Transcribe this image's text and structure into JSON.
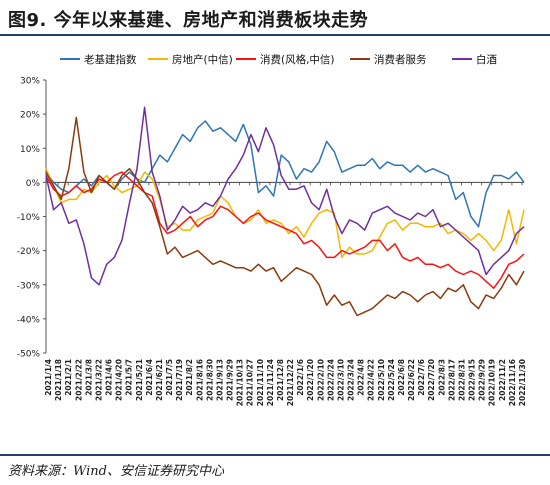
{
  "title": "图9. 今年以来基建、房地产和消费板块走势",
  "source": "资料来源：Wind、安信证券研究中心",
  "chart_data": {
    "type": "line",
    "ylim": [
      -50,
      30
    ],
    "yticks": [
      -50,
      -40,
      -30,
      -20,
      -10,
      0,
      10,
      20,
      30
    ],
    "ytick_labels": [
      "-50%",
      "-40%",
      "-30%",
      "-20%",
      "-10%",
      "0%",
      "10%",
      "20%",
      "30%"
    ],
    "x_tick_labels": [
      "2021/1/4",
      "2021/1/18",
      "2021/2/1",
      "2021/2/22",
      "2021/3/8",
      "2021/3/22",
      "2021/4/6",
      "2021/4/20",
      "2021/5/7",
      "2021/5/21",
      "2021/6/4",
      "2021/6/21",
      "2021/7/5",
      "2021/7/19",
      "2021/8/2",
      "2021/8/16",
      "2021/8/30",
      "2021/9/13",
      "2021/9/29",
      "2021/10/13",
      "2021/10/27",
      "2021/11/10",
      "2021/11/24",
      "2021/12/8",
      "2021/12/22",
      "2022/1/6",
      "2022/1/20",
      "2022/2/10",
      "2022/2/24",
      "2022/3/10",
      "2022/3/24",
      "2022/4/8",
      "2022/4/22",
      "2022/5/10",
      "2022/5/24",
      "2022/6/8",
      "2022/6/22",
      "2022/7/6",
      "2022/7/20",
      "2022/8/3",
      "2022/8/17",
      "2022/8/31",
      "2022/9/15",
      "2022/9/29",
      "2022/10/19",
      "2022/11/2",
      "2022/11/16",
      "2022/11/30"
    ],
    "legend_position": "top",
    "series": [
      {
        "name": "老基建指数",
        "color": "#2e75b6",
        "values": [
          3,
          0,
          -2,
          -3,
          -1,
          1,
          -1,
          2,
          0,
          -2,
          1,
          3,
          1,
          0,
          4,
          8,
          6,
          10,
          14,
          12,
          16,
          18,
          15,
          16,
          14,
          12,
          17,
          11,
          -3,
          -1,
          -4,
          8,
          6,
          1,
          4,
          3,
          6,
          12,
          9,
          3,
          4,
          5,
          5,
          7,
          4,
          6,
          5,
          5,
          3,
          5,
          3,
          4,
          3,
          2,
          -5,
          -3,
          -10,
          -13,
          -3,
          2,
          2,
          1,
          3,
          0
        ]
      },
      {
        "name": "房地产(中信)",
        "color": "#f5b800",
        "values": [
          4,
          -1,
          -6,
          -5,
          -5,
          -2,
          -3,
          0,
          2,
          -1,
          -3,
          -2,
          -1,
          3,
          1,
          -5,
          -13,
          -12,
          -14,
          -14,
          -11,
          -10,
          -9,
          -4,
          -6,
          -10,
          -12,
          -11,
          -8,
          -12,
          -11,
          -12,
          -15,
          -13,
          -16,
          -12,
          -9,
          -8,
          -9,
          -22,
          -19,
          -21,
          -21,
          -20,
          -16,
          -12,
          -11,
          -14,
          -12,
          -12,
          -13,
          -13,
          -12,
          -15,
          -14,
          -15,
          -17,
          -15,
          -17,
          -20,
          -17,
          -8,
          -18,
          -8
        ]
      },
      {
        "name": "消费(风格,中信)",
        "color": "#ff1111",
        "values": [
          2,
          -2,
          -4,
          -3,
          -1,
          -3,
          -2,
          1,
          0,
          2,
          3,
          1,
          -1,
          -3,
          -4,
          -12,
          -15,
          -14,
          -12,
          -10,
          -13,
          -11,
          -10,
          -7,
          -8,
          -10,
          -12,
          -10,
          -9,
          -11,
          -12,
          -13,
          -14,
          -15,
          -18,
          -17,
          -19,
          -22,
          -22,
          -20,
          -21,
          -20,
          -19,
          -17,
          -17,
          -20,
          -18,
          -22,
          -23,
          -22,
          -24,
          -24,
          -25,
          -24,
          -26,
          -27,
          -26,
          -27,
          -29,
          -31,
          -28,
          -24,
          -23,
          -21
        ]
      },
      {
        "name": "消费者服务",
        "color": "#8b3a0e",
        "values": [
          3,
          -1,
          -5,
          4,
          19,
          3,
          -3,
          2,
          0,
          -2,
          2,
          4,
          1,
          -3,
          -6,
          -13,
          -21,
          -19,
          -22,
          -21,
          -20,
          -22,
          -24,
          -23,
          -24,
          -25,
          -25,
          -26,
          -24,
          -26,
          -25,
          -29,
          -27,
          -25,
          -26,
          -27,
          -30,
          -36,
          -33,
          -36,
          -35,
          -39,
          -38,
          -37,
          -35,
          -33,
          -34,
          -32,
          -33,
          -35,
          -33,
          -32,
          -34,
          -31,
          -32,
          -30,
          -35,
          -37,
          -33,
          -34,
          -31,
          -27,
          -30,
          -26
        ]
      },
      {
        "name": "白酒",
        "color": "#7030a0",
        "values": [
          2,
          -8,
          -6,
          -12,
          -11,
          -18,
          -28,
          -30,
          -24,
          -22,
          -17,
          -6,
          4,
          22,
          3,
          -4,
          -14,
          -11,
          -7,
          -9,
          -8,
          -6,
          -7,
          -4,
          1,
          4,
          8,
          14,
          9,
          16,
          11,
          2,
          -2,
          -2,
          -1,
          -6,
          -8,
          -2,
          -10,
          -15,
          -11,
          -12,
          -14,
          -9,
          -8,
          -7,
          -9,
          -10,
          -11,
          -9,
          -10,
          -8,
          -13,
          -12,
          -14,
          -16,
          -18,
          -20,
          -27,
          -24,
          -22,
          -20,
          -15,
          -13
        ]
      }
    ]
  }
}
